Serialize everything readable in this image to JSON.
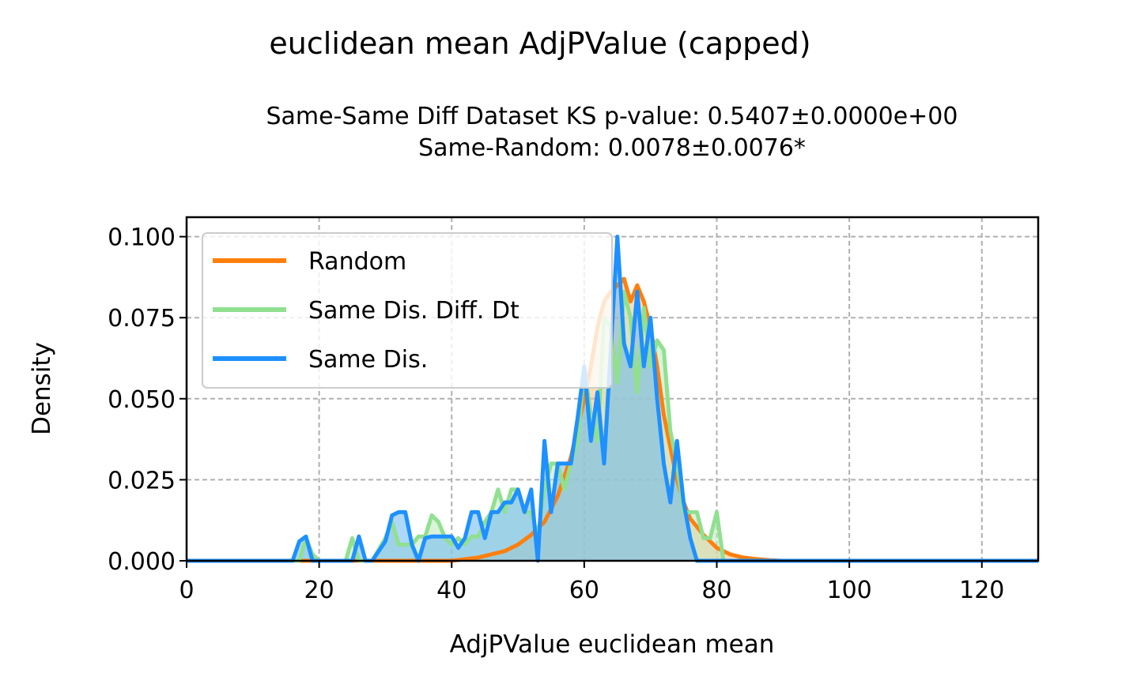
{
  "chart_data": {
    "type": "line",
    "title": "euclidean mean AdjPValue (capped)",
    "subtitle_lines": [
      "Same-Same Diff Dataset  KS p-value: 0.5407±0.0000e+00",
      "Same-Random: 0.0078±0.0076*"
    ],
    "xlabel": "AdjPValue euclidean mean",
    "ylabel": "Density",
    "xlim": [
      0,
      128.5
    ],
    "ylim": [
      0,
      0.106
    ],
    "xticks": [
      0,
      20,
      40,
      60,
      80,
      100,
      120
    ],
    "xtick_labels": [
      "0",
      "20",
      "40",
      "60",
      "80",
      "100",
      "120"
    ],
    "yticks": [
      0,
      0.025,
      0.05,
      0.075,
      0.1
    ],
    "ytick_labels": [
      "0.000",
      "0.025",
      "0.050",
      "0.075",
      "0.100"
    ],
    "grid": true,
    "legend_position": "upper-left",
    "series": [
      {
        "name": "Random",
        "color": "#ff7f0e",
        "fill_color": "#ffbf80",
        "x": [
          0,
          40,
          44,
          46,
          48,
          50,
          52,
          54,
          56,
          58,
          60,
          61,
          62,
          63,
          64,
          65,
          66,
          67,
          68,
          69,
          70,
          71,
          72,
          73,
          74,
          75,
          76,
          78,
          80,
          82,
          84,
          86,
          88,
          90,
          128.5
        ],
        "y": [
          0,
          0,
          0.001,
          0.002,
          0.003,
          0.005,
          0.008,
          0.012,
          0.02,
          0.032,
          0.05,
          0.06,
          0.072,
          0.08,
          0.083,
          0.085,
          0.087,
          0.08,
          0.085,
          0.08,
          0.072,
          0.06,
          0.045,
          0.035,
          0.025,
          0.018,
          0.013,
          0.008,
          0.004,
          0.002,
          0.001,
          0.0005,
          0.0002,
          0,
          0
        ]
      },
      {
        "name": "Same Dis. Diff. Dt",
        "color": "#90e090",
        "fill_color": "#bde8bd",
        "x": [
          0,
          17,
          18,
          19,
          20,
          24,
          25,
          26,
          28,
          30,
          31,
          32,
          33,
          34,
          35,
          36,
          37,
          38,
          39,
          40,
          41,
          42,
          43,
          44,
          45,
          46,
          47,
          48,
          49,
          50,
          51,
          52,
          53,
          54,
          55,
          56,
          57,
          58,
          59,
          60,
          61,
          62,
          63,
          64,
          65,
          66,
          67,
          68,
          69,
          70,
          71,
          72,
          73,
          74,
          75,
          76,
          77,
          78,
          79,
          80,
          81,
          82,
          128.5
        ],
        "y": [
          0,
          0,
          0.007,
          0.002,
          0,
          0,
          0.007,
          0,
          0,
          0.007,
          0.012,
          0.005,
          0.005,
          0.005,
          0.0075,
          0.0075,
          0.014,
          0.012,
          0.007,
          0.005,
          0.007,
          0.005,
          0.0075,
          0.0075,
          0.012,
          0.015,
          0.022,
          0.015,
          0.022,
          0.022,
          0.015,
          0.015,
          0.0075,
          0.022,
          0.03,
          0.03,
          0.022,
          0.03,
          0.037,
          0.06,
          0.045,
          0.037,
          0.075,
          0.072,
          0.055,
          0.083,
          0.075,
          0.052,
          0.078,
          0.06,
          0.068,
          0.065,
          0.04,
          0.03,
          0.015,
          0.015,
          0.015,
          0.007,
          0.007,
          0.015,
          0,
          0,
          0
        ]
      },
      {
        "name": "Same Dis.",
        "color": "#1e90ff",
        "fill_color": "#6cb8f0",
        "x": [
          0,
          16,
          17,
          18,
          19,
          25,
          26,
          27,
          28,
          30,
          31,
          32,
          33,
          34,
          35,
          36,
          37,
          38,
          39,
          40,
          41,
          42,
          43,
          44,
          45,
          46,
          47,
          48,
          49,
          50,
          51,
          52,
          53,
          54,
          55,
          56,
          57,
          58,
          59,
          60,
          61,
          62,
          63,
          64,
          65,
          66,
          67,
          68,
          69,
          70,
          71,
          72,
          73,
          74,
          75,
          76,
          77,
          78,
          128.5
        ],
        "y": [
          0,
          0,
          0.006,
          0.0075,
          0,
          0,
          0.0075,
          0,
          0,
          0.006,
          0.014,
          0.015,
          0.015,
          0.005,
          0,
          0.007,
          0.0075,
          0.0075,
          0.0075,
          0.0075,
          0.004,
          0.007,
          0.015,
          0.015,
          0.007,
          0.015,
          0.015,
          0.018,
          0.018,
          0.022,
          0.015,
          0.022,
          0,
          0.037,
          0.015,
          0.03,
          0.03,
          0.03,
          0.044,
          0.06,
          0.037,
          0.052,
          0.03,
          0.065,
          0.1,
          0.067,
          0.06,
          0.083,
          0.06,
          0.075,
          0.05,
          0.03,
          0.018,
          0.037,
          0.018,
          0.007,
          0,
          0,
          0
        ]
      }
    ]
  }
}
